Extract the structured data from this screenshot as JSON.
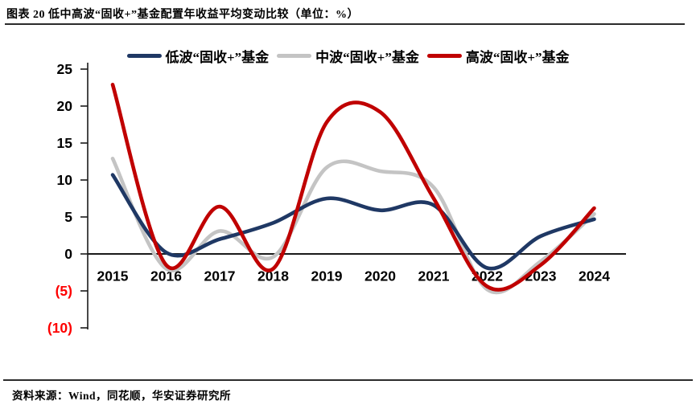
{
  "header": {
    "title": "图表 20 低中高波“固收+”基金配置年收益平均变动比较（单位：%）"
  },
  "footer": {
    "source": "资料来源：Wind，同花顺，华安证券研究所"
  },
  "colors": {
    "low_series": "#1f3864",
    "mid_series": "#c4c4c4",
    "high_series": "#c00000",
    "axis": "#1a1a1a",
    "negative_tick": "#fe0000",
    "tick_label": "#000000"
  },
  "chart_data": {
    "type": "line",
    "x": [
      2015,
      2016,
      2017,
      2018,
      2019,
      2020,
      2021,
      2022,
      2023,
      2024
    ],
    "series": [
      {
        "name": "低波“固收+”基金",
        "color": "#1f3864",
        "values": [
          10.7,
          0.2,
          2.0,
          4.2,
          7.5,
          5.9,
          6.6,
          -1.9,
          2.4,
          4.7
        ]
      },
      {
        "name": "中波“固收+”基金",
        "color": "#c4c4c4",
        "values": [
          12.9,
          -2.0,
          3.1,
          -0.4,
          11.7,
          11.2,
          9.0,
          -4.8,
          -1.0,
          5.4
        ]
      },
      {
        "name": "高波“固收+”基金",
        "color": "#c00000",
        "values": [
          22.9,
          -1.5,
          6.4,
          -2.0,
          17.8,
          19.2,
          7.5,
          -4.4,
          -1.5,
          6.2
        ]
      }
    ],
    "title": "图表 20 低中高波“固收+”基金配置年收益平均变动比较",
    "unit": "%",
    "xlabel": "",
    "ylabel": "",
    "ylim": [
      -10,
      25
    ],
    "yticks": [
      {
        "value": 25,
        "label": "25",
        "color": "#000000"
      },
      {
        "value": 20,
        "label": "20",
        "color": "#000000"
      },
      {
        "value": 15,
        "label": "15",
        "color": "#000000"
      },
      {
        "value": 10,
        "label": "10",
        "color": "#000000"
      },
      {
        "value": 5,
        "label": "5",
        "color": "#000000"
      },
      {
        "value": 0,
        "label": "0",
        "color": "#000000"
      },
      {
        "value": -5,
        "label": "(5)",
        "color": "#fe0000"
      },
      {
        "value": -10,
        "label": "(10)",
        "color": "#fe0000"
      }
    ],
    "grid": false,
    "legend_position": "top",
    "negative_label_style": "parentheses-red"
  }
}
